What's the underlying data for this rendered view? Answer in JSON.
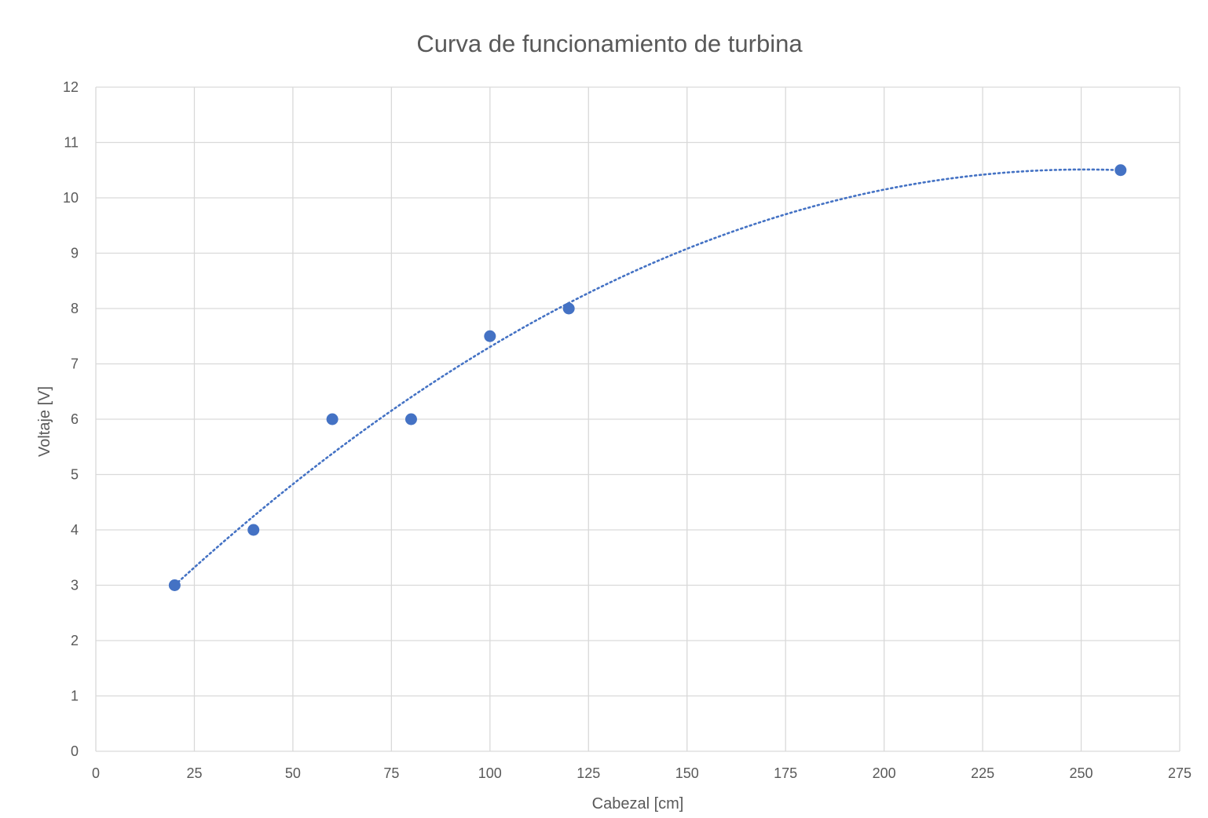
{
  "chart_data": {
    "type": "scatter",
    "title": "Curva de funcionamiento de turbina",
    "xlabel": "Cabezal [cm]",
    "ylabel": "Voltaje [V]",
    "xlim": [
      0,
      275
    ],
    "ylim": [
      0,
      12
    ],
    "x_ticks": [
      0,
      25,
      50,
      75,
      100,
      125,
      150,
      175,
      200,
      225,
      250,
      275
    ],
    "y_ticks": [
      0,
      1,
      2,
      3,
      4,
      5,
      6,
      7,
      8,
      9,
      10,
      11,
      12
    ],
    "grid": true,
    "legend": "none",
    "series": [
      {
        "x": [
          20,
          40,
          60,
          80,
          100,
          120,
          260
        ],
        "y": [
          3,
          4,
          6,
          6,
          7.5,
          8,
          10.5
        ]
      }
    ],
    "trendline": {
      "type": "polynomial",
      "style": "dotted",
      "x_range": [
        20,
        260
      ],
      "fit_points": [
        [
          20,
          3.0
        ],
        [
          120,
          8.1
        ],
        [
          260,
          10.5
        ]
      ]
    },
    "colors": {
      "marker": "#4472c4",
      "trendline": "#4472c4",
      "grid": "#d9d9d9",
      "text": "#595959"
    }
  }
}
